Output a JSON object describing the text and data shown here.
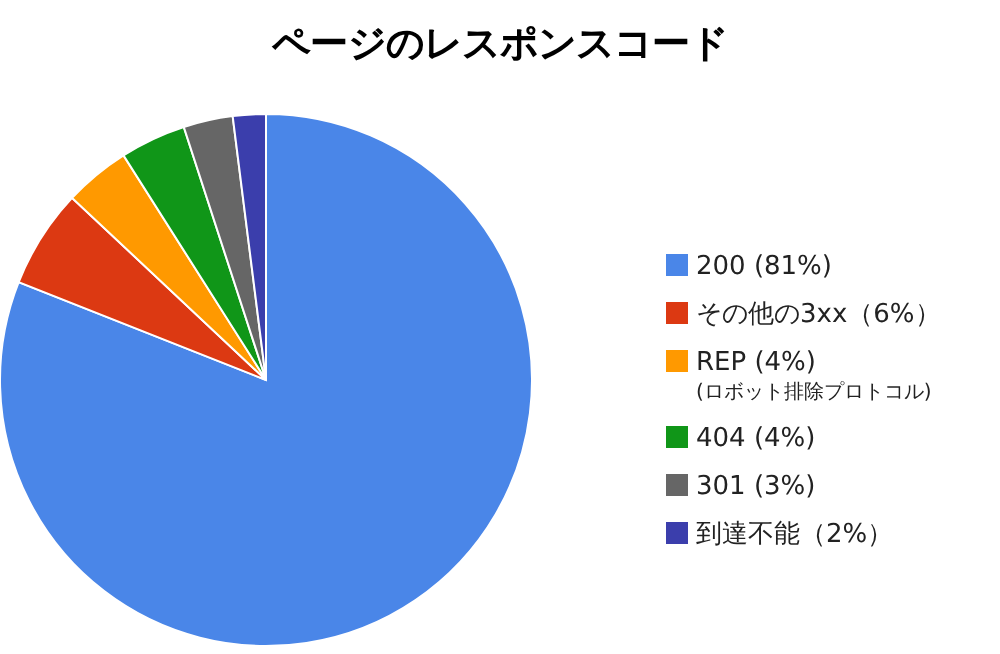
{
  "chart_data": {
    "type": "pie",
    "title": "ページのレスポンスコード",
    "categories": [
      "200 (81%)",
      "その他の3xx（6%）",
      "REP (4%)\n(ロボット排除プロトコル)",
      "404 (4%)",
      "301 (3%)",
      "到達不能（2%）"
    ],
    "values": [
      81,
      6,
      4,
      4,
      3,
      2
    ],
    "colors": [
      "#4a86e8",
      "#dc3912",
      "#ff9900",
      "#109618",
      "#666666",
      "#3b3eac"
    ],
    "legend": "right"
  }
}
